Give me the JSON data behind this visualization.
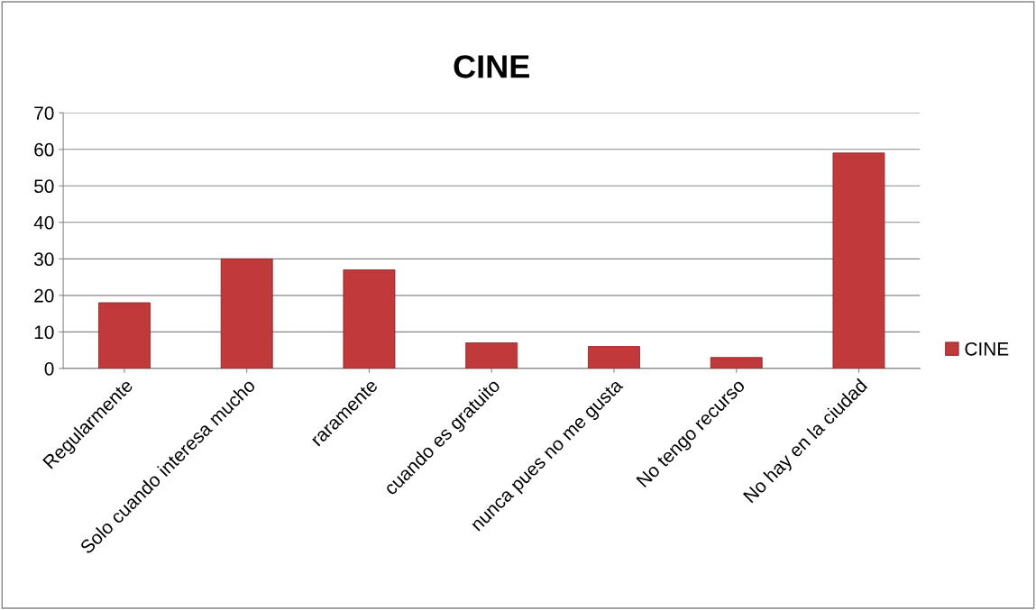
{
  "chart_data": {
    "type": "bar",
    "title": "CINE",
    "categories": [
      "Regularmente",
      "Solo cuando interesa mucho",
      "raramente",
      "cuando es gratuito",
      "nunca pues no me gusta",
      "No tengo recurso",
      "No hay en la ciudad"
    ],
    "series": [
      {
        "name": "CINE",
        "color": "#c0393b",
        "values": [
          18,
          30,
          27,
          7,
          6,
          3,
          59
        ]
      }
    ],
    "ylim": [
      0,
      70
    ],
    "yticks": [
      0,
      10,
      20,
      30,
      40,
      50,
      60,
      70
    ],
    "grid": "y",
    "legend": "right"
  }
}
